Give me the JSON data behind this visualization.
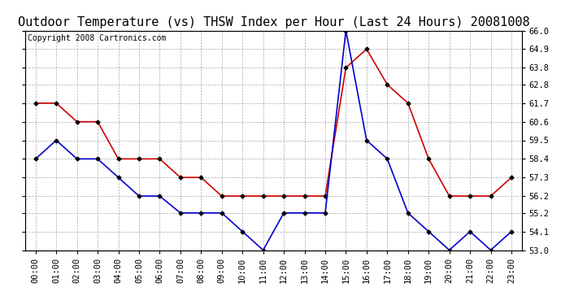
{
  "title": "Outdoor Temperature (vs) THSW Index per Hour (Last 24 Hours) 20081008",
  "copyright": "Copyright 2008 Cartronics.com",
  "hours": [
    "00:00",
    "01:00",
    "02:00",
    "03:00",
    "04:00",
    "05:00",
    "06:00",
    "07:00",
    "08:00",
    "09:00",
    "10:00",
    "11:00",
    "12:00",
    "13:00",
    "14:00",
    "15:00",
    "16:00",
    "17:00",
    "18:00",
    "19:00",
    "20:00",
    "21:00",
    "22:00",
    "23:00"
  ],
  "temp": [
    61.7,
    61.7,
    60.6,
    60.6,
    58.4,
    58.4,
    58.4,
    57.3,
    57.3,
    56.2,
    56.2,
    56.2,
    56.2,
    56.2,
    56.2,
    63.8,
    64.9,
    62.8,
    61.7,
    58.4,
    56.2,
    56.2,
    56.2,
    57.3
  ],
  "thsw": [
    58.4,
    59.5,
    58.4,
    58.4,
    57.3,
    56.2,
    56.2,
    55.2,
    55.2,
    55.2,
    54.1,
    53.0,
    55.2,
    55.2,
    55.2,
    66.0,
    59.5,
    58.4,
    55.2,
    54.1,
    53.0,
    54.1,
    53.0,
    54.1
  ],
  "temp_color": "#cc0000",
  "thsw_color": "#0000cc",
  "bg_color": "#ffffff",
  "plot_bg_color": "#ffffff",
  "grid_color": "#aaaaaa",
  "ylim_min": 53.0,
  "ylim_max": 66.0,
  "yticks": [
    53.0,
    54.1,
    55.2,
    56.2,
    57.3,
    58.4,
    59.5,
    60.6,
    61.7,
    62.8,
    63.8,
    64.9,
    66.0
  ],
  "title_fontsize": 11,
  "copyright_fontsize": 7,
  "tick_fontsize": 7.5,
  "marker": "D",
  "marker_size": 2.5,
  "line_width": 1.2
}
